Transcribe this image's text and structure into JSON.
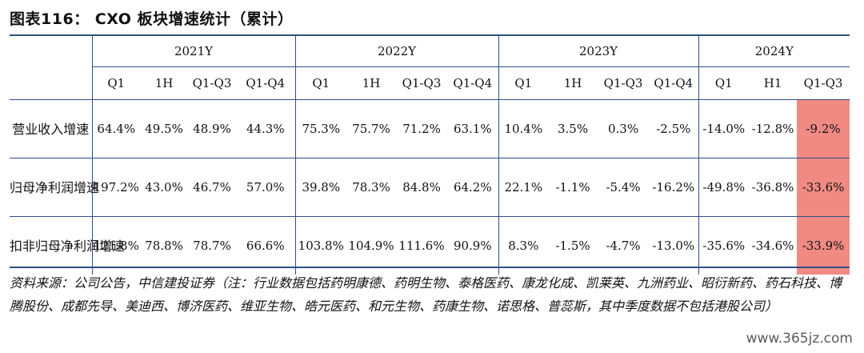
{
  "title": "图表116：  CXO 板块增速统计（累计）",
  "years": [
    "2021Y",
    "2022Y",
    "2023Y",
    "2024Y"
  ],
  "quarters": [
    [
      "Q1",
      "1H",
      "Q1-Q3",
      "Q1-Q4"
    ],
    [
      "Q1",
      "1H",
      "Q1-Q3",
      "Q1-Q4"
    ],
    [
      "Q1",
      "1H",
      "Q1-Q3",
      "Q1-Q4"
    ],
    [
      "Q1",
      "H1",
      "Q1-Q3"
    ]
  ],
  "rows": [
    {
      "label": "营业收入增速",
      "values": [
        "64.4%",
        "49.5%",
        "48.9%",
        "44.3%",
        "75.3%",
        "75.7%",
        "71.2%",
        "63.1%",
        "10.4%",
        "3.5%",
        "0.3%",
        "-2.5%",
        "-14.0%",
        "-12.8%",
        "-9.2%"
      ]
    },
    {
      "label": "归母净利润增速",
      "values": [
        "197.2%",
        "43.0%",
        "46.7%",
        "57.0%",
        "39.8%",
        "78.3%",
        "84.8%",
        "64.2%",
        "22.1%",
        "-1.1%",
        "-5.4%",
        "-16.2%",
        "-49.8%",
        "-36.8%",
        "-33.6%"
      ]
    },
    {
      "label": "扣非归母净利润增速",
      "values": [
        "121.8%",
        "78.8%",
        "78.7%",
        "66.6%",
        "103.8%",
        "104.9%",
        "111.6%",
        "90.9%",
        "8.3%",
        "-1.5%",
        "-4.7%",
        "-13.0%",
        "-35.6%",
        "-34.6%",
        "-33.9%"
      ]
    }
  ],
  "highlight_color": "#f08a83",
  "rule_color": "#2f4f86",
  "source": "资料来源：公司公告，中信建投证券（注：行业数据包括药明康德、药明生物、泰格医药、康龙化成、凯莱英、九洲药业、昭衍新药、药石科技、博腾股份、成都先导、美迪西、博济医药、维亚生物、皓元医药、和元生物、药康生物、诺思格、普蕊斯，其中季度数据不包括港股公司）",
  "watermark": "www.365jz.com"
}
